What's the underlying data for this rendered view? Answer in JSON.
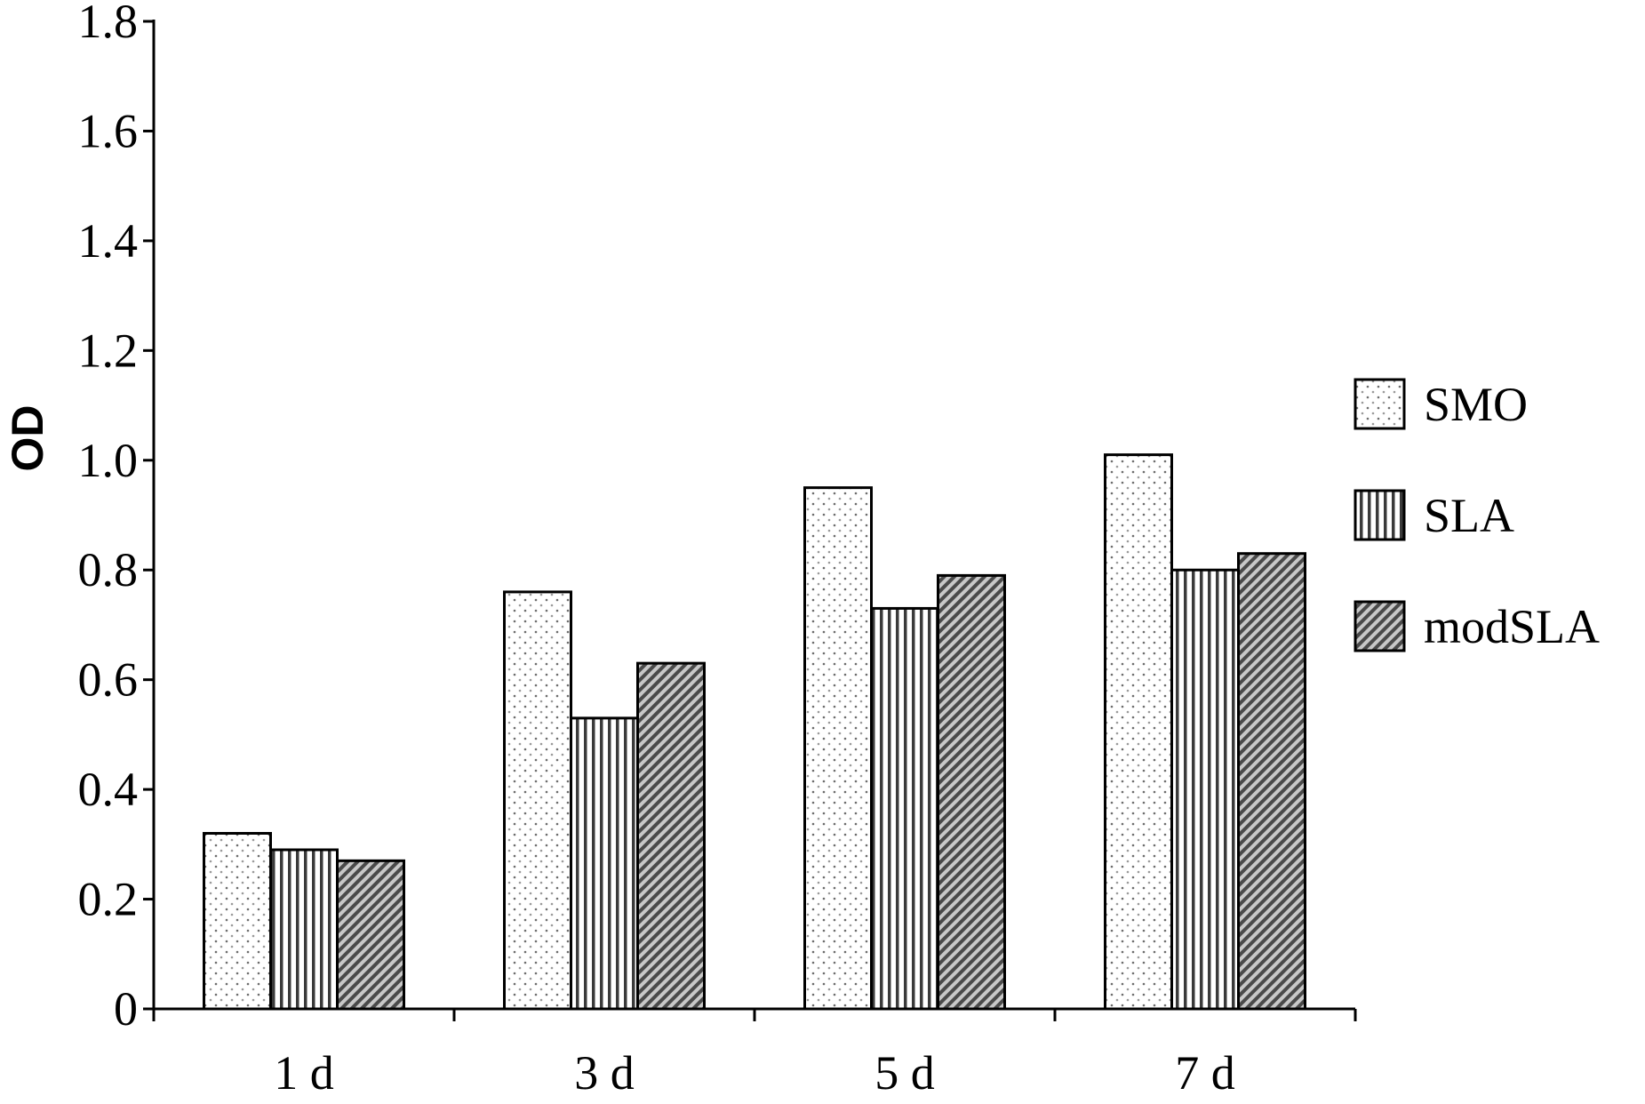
{
  "chart_data": {
    "type": "bar",
    "ylabel": "OD",
    "xlabel": "",
    "categories": [
      "1 d",
      "3 d",
      "5 d",
      "7 d"
    ],
    "series": [
      {
        "name": "SMO",
        "values": [
          0.32,
          0.76,
          0.95,
          1.01
        ],
        "pattern": "dots"
      },
      {
        "name": "SLA",
        "values": [
          0.29,
          0.53,
          0.73,
          0.8
        ],
        "pattern": "vertical-lines"
      },
      {
        "name": "modSLA",
        "values": [
          0.27,
          0.63,
          0.79,
          0.83
        ],
        "pattern": "diagonal-hatch"
      }
    ],
    "ylim": [
      0,
      1.8
    ],
    "yticks": [
      "0",
      "0.2",
      "0.4",
      "0.6",
      "0.8",
      "1.0",
      "1.2",
      "1.4",
      "1.6",
      "1.8"
    ],
    "grid": false,
    "legend_position": "right"
  }
}
